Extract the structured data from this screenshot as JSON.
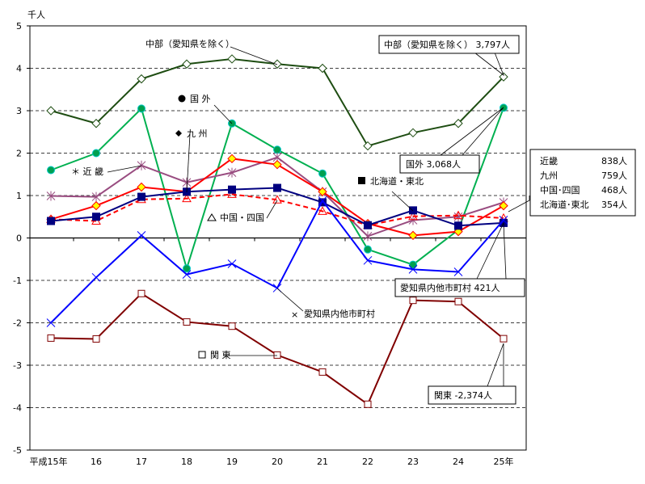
{
  "chart_data": {
    "type": "line",
    "yunit": "千人",
    "ylim": [
      -5,
      5
    ],
    "yticks": [
      "5",
      "4",
      "3",
      "2",
      "1",
      "0",
      "-1",
      "-2",
      "-3",
      "-4",
      "-5"
    ],
    "categories": [
      "平成15年",
      "16",
      "17",
      "18",
      "19",
      "20",
      "21",
      "22",
      "23",
      "24",
      "25年"
    ],
    "grid": "horizontal dashed",
    "series": [
      {
        "name": "中部（愛知県を除く）",
        "color": "#1e4d12",
        "marker": "open-diamond",
        "dash": false,
        "values": [
          3.0,
          2.7,
          3.75,
          4.1,
          4.22,
          4.1,
          4.0,
          2.17,
          2.48,
          2.7,
          3.797
        ]
      },
      {
        "name": "国 外",
        "color": "#00b050",
        "marker": "green-circle",
        "dash": false,
        "values": [
          1.6,
          2.0,
          3.05,
          -0.72,
          2.7,
          2.08,
          1.52,
          -0.27,
          -0.63,
          0.19,
          3.068
        ]
      },
      {
        "name": "＊ 近 畿",
        "color": "#994c80",
        "marker": "asterisk",
        "dash": false,
        "values": [
          0.99,
          0.97,
          1.71,
          1.31,
          1.54,
          1.9,
          1.09,
          0.04,
          0.42,
          0.5,
          0.838
        ]
      },
      {
        "name": "九 州",
        "color": "#ff0000",
        "marker": "yellow-diamond",
        "dash": false,
        "values": [
          0.44,
          0.76,
          1.2,
          1.09,
          1.87,
          1.73,
          1.09,
          0.34,
          0.06,
          0.15,
          0.759
        ]
      },
      {
        "name": "中国・四国",
        "color": "#ff0000",
        "marker": "open-triangle",
        "dash": true,
        "values": [
          0.44,
          0.4,
          0.91,
          0.93,
          1.03,
          0.9,
          0.63,
          0.3,
          0.51,
          0.53,
          0.468
        ]
      },
      {
        "name": "北海道・東北",
        "color": "#000080",
        "marker": "square",
        "dash": false,
        "values": [
          0.4,
          0.5,
          0.97,
          1.09,
          1.14,
          1.18,
          0.84,
          0.3,
          0.65,
          0.29,
          0.354
        ]
      },
      {
        "name": "愛知県内他市町村",
        "color": "#0000ff",
        "marker": "x",
        "dash": false,
        "values": [
          -2.0,
          -0.93,
          0.06,
          -0.86,
          -0.61,
          -1.18,
          0.88,
          -0.53,
          -0.74,
          -0.8,
          0.421
        ]
      },
      {
        "name": "関 東",
        "color": "#800000",
        "marker": "open-square",
        "dash": false,
        "values": [
          -2.36,
          -2.38,
          -1.31,
          -1.98,
          -2.08,
          -2.76,
          -3.16,
          -3.92,
          -1.47,
          -1.5,
          -2.374
        ]
      }
    ],
    "annotations": {
      "chubu": "中部（愛知県を除く） 3,797人",
      "kokugai": "国外 3,068人",
      "aichi": "愛知県内他市町村  421人",
      "kanto": "関東 -2,374人",
      "box": [
        {
          "name": "近畿",
          "value": "838人"
        },
        {
          "name": "九州",
          "value": "759人"
        },
        {
          "name": "中国･四国",
          "value": "468人"
        },
        {
          "name": "北海道･東北",
          "value": "354人"
        }
      ]
    }
  }
}
